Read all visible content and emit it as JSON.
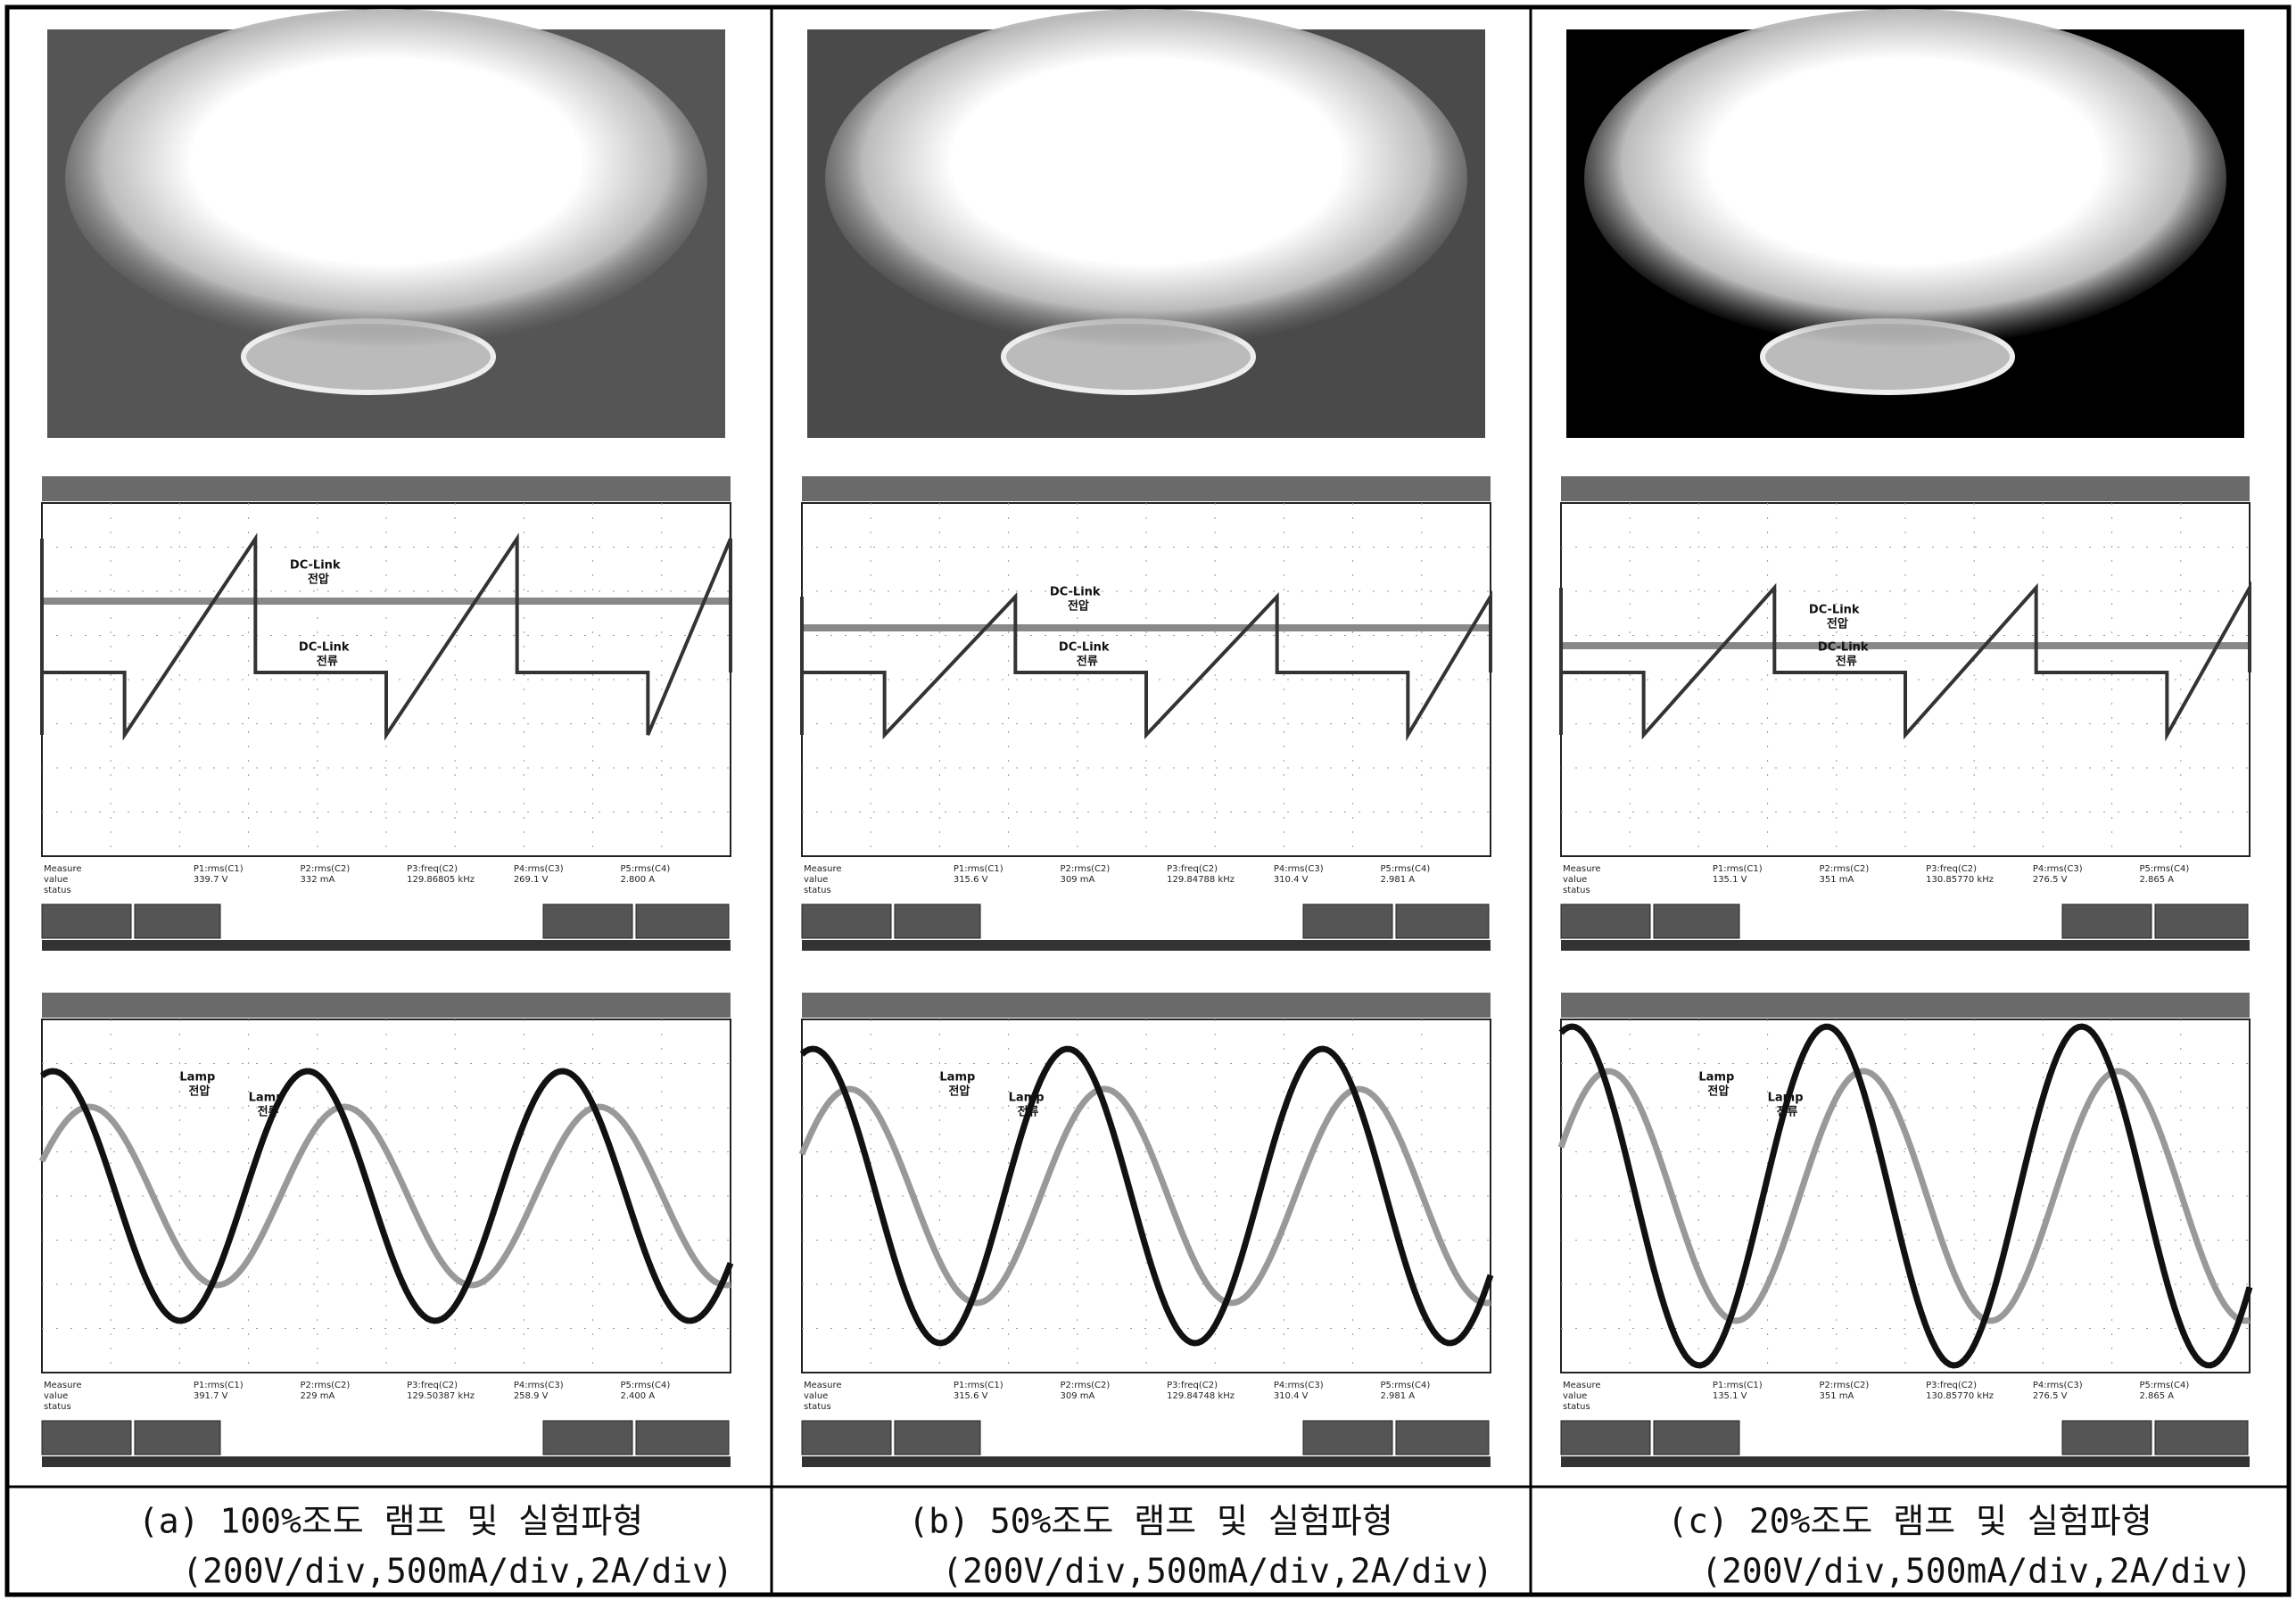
{
  "measure_labels": [
    "Measure",
    "value",
    "status"
  ],
  "params": [
    "P1:rms(C1)",
    "P2:rms(C2)",
    "P3:freq(C2)",
    "P4:rms(C3)",
    "P5:rms(C4)"
  ],
  "panels": [
    {
      "caption": "(a) 100%조도 램프 및 실험파형",
      "units": "(200V/div,500mA/div,2A/div)",
      "dc_link": {
        "title": "DC-Link",
        "voltage": "전압",
        "current": "전류"
      },
      "lamp": {
        "title": "Lamp",
        "voltage": "전압",
        "current": "전류"
      },
      "top_values": [
        "339.7 V",
        "332 mA",
        "129.86805 kHz",
        "269.1 V",
        "2.800 A"
      ],
      "bottom_values": [
        "391.7 V",
        "229 mA",
        "129.50387 kHz",
        "258.9 V",
        "2.400 A"
      ]
    },
    {
      "caption": "(b) 50%조도 램프 및 실험파형",
      "units": "(200V/div,500mA/div,2A/div)",
      "dc_link": {
        "title": "DC-Link",
        "voltage": "전압",
        "current": "전류"
      },
      "lamp": {
        "title": "Lamp",
        "voltage": "전압",
        "current": "전류"
      },
      "top_values": [
        "315.6 V",
        "309 mA",
        "129.84788 kHz",
        "310.4 V",
        "2.981 A"
      ],
      "bottom_values": [
        "315.6 V",
        "309 mA",
        "129.84748 kHz",
        "310.4 V",
        "2.981 A"
      ]
    },
    {
      "caption": "(c) 20%조도 램프 및 실험파형",
      "units": "(200V/div,500mA/div,2A/div)",
      "dc_link": {
        "title": "DC-Link",
        "voltage": "전압",
        "current": "전류"
      },
      "lamp": {
        "title": "Lamp",
        "voltage": "전압",
        "current": "전류"
      },
      "top_values": [
        "135.1 V",
        "351 mA",
        "130.85770 kHz",
        "276.5 V",
        "2.865 A"
      ],
      "bottom_values": [
        "135.1 V",
        "351 mA",
        "130.85770 kHz",
        "276.5 V",
        "2.865 A"
      ]
    }
  ]
}
